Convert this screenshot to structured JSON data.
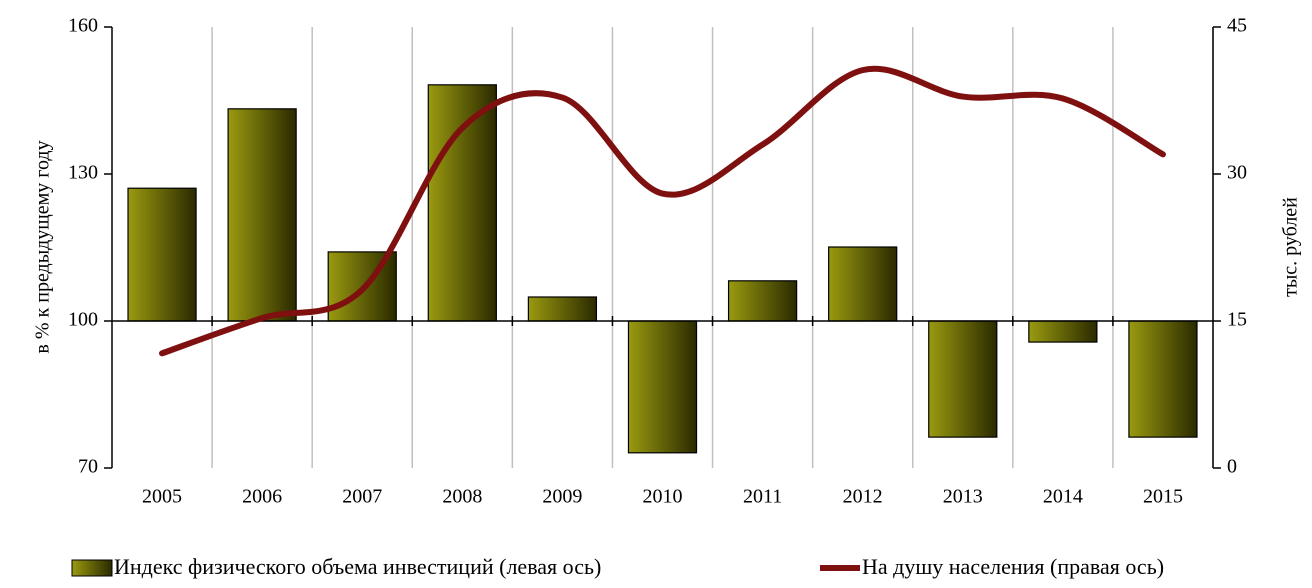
{
  "chart_data": {
    "type": "combo",
    "categories": [
      "2005",
      "2006",
      "2007",
      "2008",
      "2009",
      "2010",
      "2011",
      "2012",
      "2013",
      "2014",
      "2015"
    ],
    "y_label": "в % к предыдущему году",
    "y2_label": "тыс. рублей",
    "ylim": [
      70,
      160
    ],
    "yticks": [
      70,
      100,
      130,
      160
    ],
    "y2lim": [
      0,
      45
    ],
    "y2ticks": [
      0,
      15,
      30,
      45
    ],
    "x_axis_crosses": 100,
    "grid": "vertical",
    "legend": "bottom",
    "series": [
      {
        "name": "Индекс физического объема инвестиций (левая ось)",
        "type": "bar",
        "color": "#808000",
        "values": [
          127.1,
          143.3,
          114.1,
          148.2,
          104.9,
          73.1,
          108.2,
          115.1,
          76.3,
          95.7,
          76.3
        ]
      },
      {
        "name": "На душу населения (правая ось)",
        "type": "line",
        "axis": "y2",
        "color": "#7f1010",
        "smooth": true,
        "values": [
          11.7,
          15.3,
          18.2,
          34.7,
          37.8,
          28.0,
          33.0,
          40.6,
          37.9,
          37.7,
          32.0
        ]
      }
    ]
  }
}
